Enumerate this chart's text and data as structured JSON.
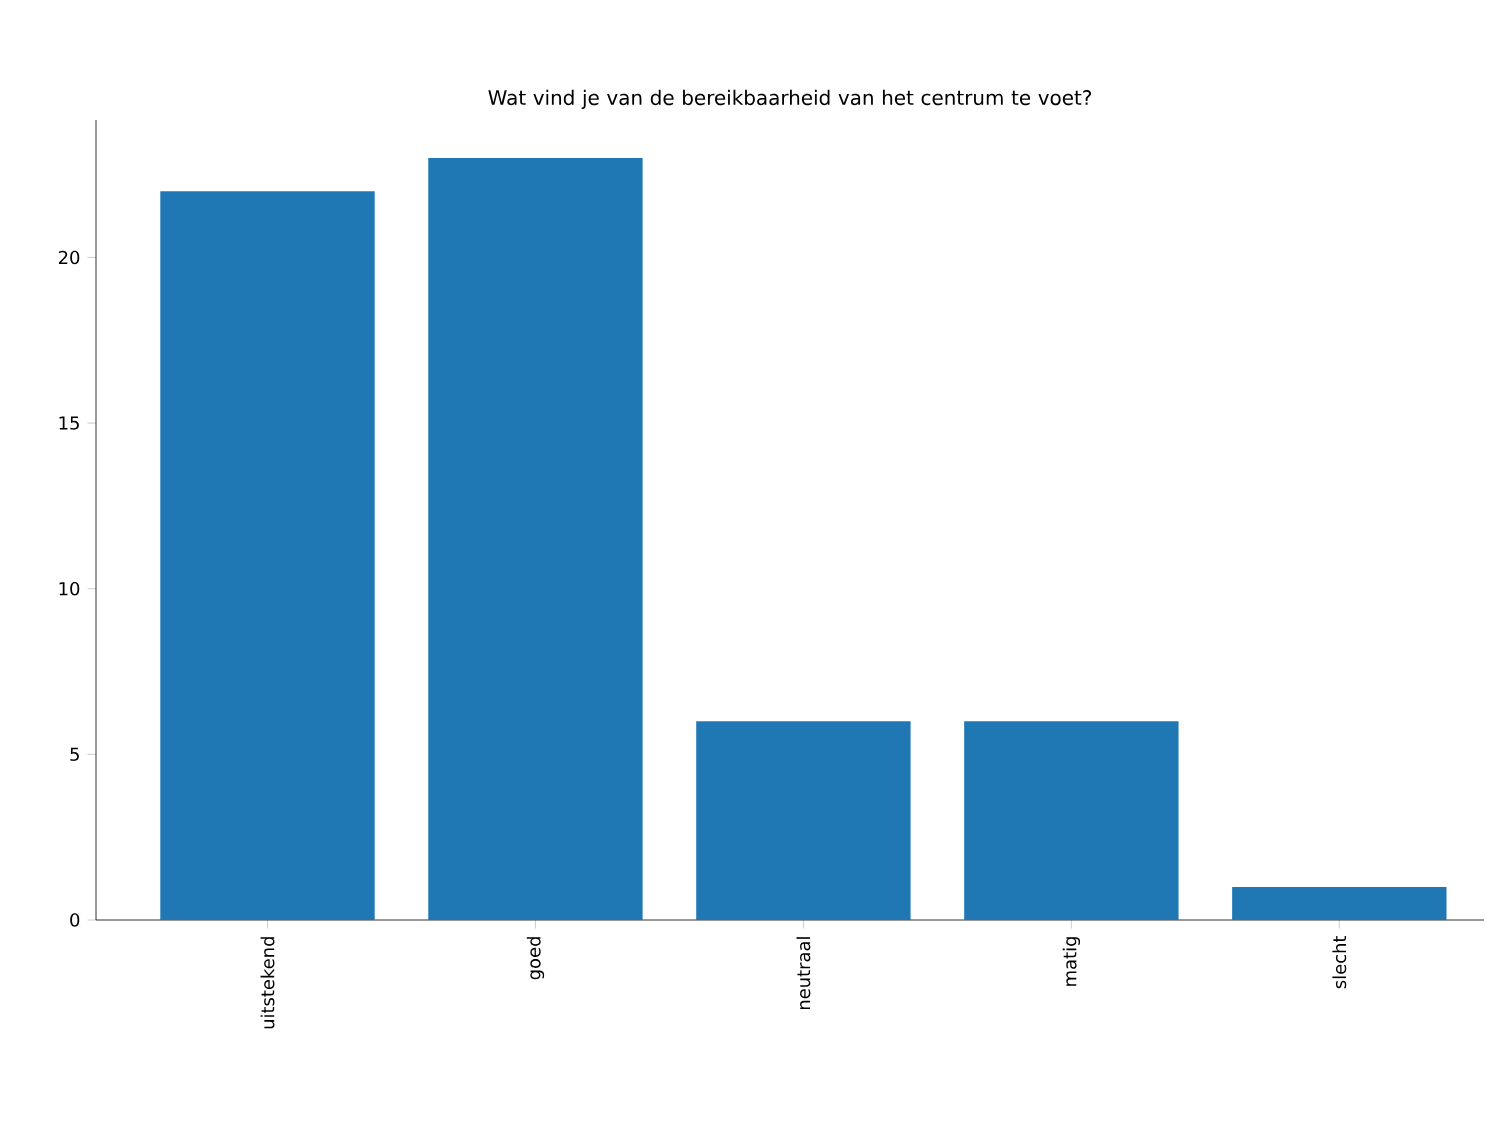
{
  "chart_data": {
    "type": "bar",
    "title": "Wat vind je van de bereikbaarheid van het centrum te voet?",
    "categories": [
      "uitstekend",
      "goed",
      "neutraal",
      "matig",
      "slecht"
    ],
    "values": [
      22,
      23,
      6,
      6,
      1
    ],
    "color": "#1f77b4",
    "ylim": [
      0,
      24.15
    ],
    "yticks": [
      0,
      5,
      10,
      15,
      20
    ]
  }
}
